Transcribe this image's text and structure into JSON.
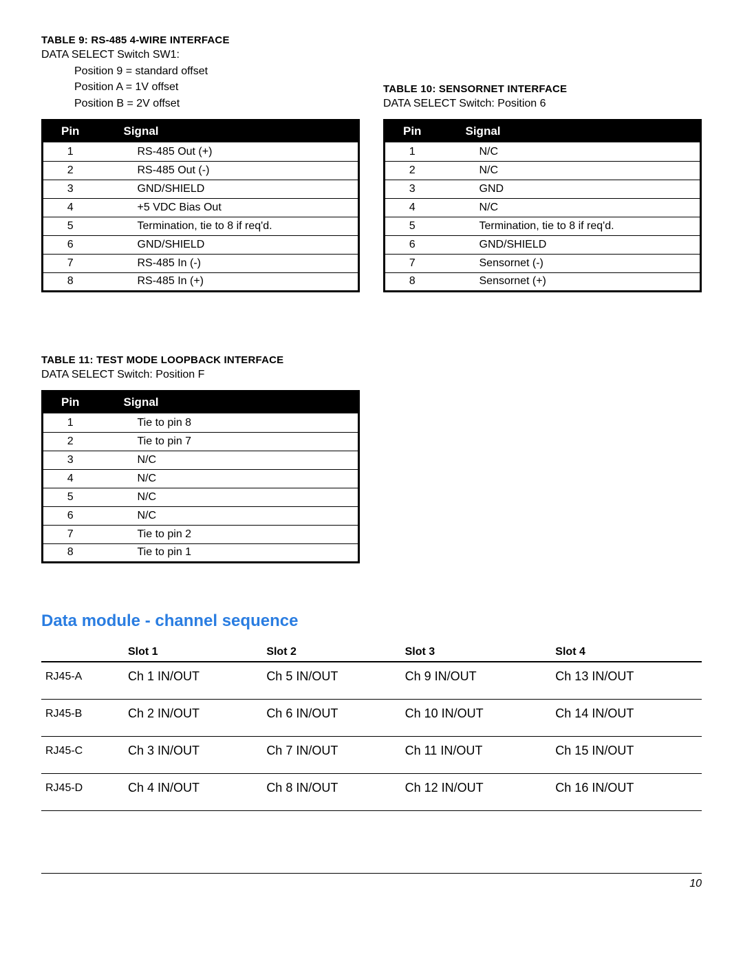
{
  "table9": {
    "title": "TABLE 9: RS-485 4-WIRE INTERFACE",
    "sub1": "DATA SELECT Switch SW1:",
    "positions": [
      "Position 9 = standard offset",
      "Position A = 1V offset",
      "Position B = 2V offset"
    ],
    "header_pin": "Pin",
    "header_signal": "Signal",
    "rows": [
      {
        "pin": "1",
        "signal": "RS-485 Out (+)"
      },
      {
        "pin": "2",
        "signal": "RS-485 Out (-)"
      },
      {
        "pin": "3",
        "signal": "GND/SHIELD"
      },
      {
        "pin": "4",
        "signal": "+5 VDC Bias Out"
      },
      {
        "pin": "5",
        "signal": "Termination, tie to 8 if req'd."
      },
      {
        "pin": "6",
        "signal": "GND/SHIELD"
      },
      {
        "pin": "7",
        "signal": "RS-485 In (-)"
      },
      {
        "pin": "8",
        "signal": "RS-485 In (+)"
      }
    ]
  },
  "table10": {
    "title": "TABLE 10: SENSORNET INTERFACE",
    "sub1": "DATA SELECT Switch: Position 6",
    "header_pin": "Pin",
    "header_signal": "Signal",
    "rows": [
      {
        "pin": "1",
        "signal": "N/C"
      },
      {
        "pin": "2",
        "signal": "N/C"
      },
      {
        "pin": "3",
        "signal": "GND"
      },
      {
        "pin": "4",
        "signal": "N/C"
      },
      {
        "pin": "5",
        "signal": "Termination, tie to 8 if req'd."
      },
      {
        "pin": "6",
        "signal": "GND/SHIELD"
      },
      {
        "pin": "7",
        "signal": "Sensornet (-)"
      },
      {
        "pin": "8",
        "signal": "Sensornet (+)"
      }
    ]
  },
  "table11": {
    "title": "TABLE 11: TEST MODE LOOPBACK INTERFACE",
    "sub1": "DATA SELECT Switch: Position F",
    "header_pin": "Pin",
    "header_signal": "Signal",
    "rows": [
      {
        "pin": "1",
        "signal": "Tie to pin 8"
      },
      {
        "pin": "2",
        "signal": "Tie to pin 7"
      },
      {
        "pin": "3",
        "signal": "N/C"
      },
      {
        "pin": "4",
        "signal": "N/C"
      },
      {
        "pin": "5",
        "signal": "N/C"
      },
      {
        "pin": "6",
        "signal": "N/C"
      },
      {
        "pin": "7",
        "signal": "Tie to pin 2"
      },
      {
        "pin": "8",
        "signal": "Tie to pin 1"
      }
    ]
  },
  "sequence": {
    "title": "Data module - channel sequence",
    "slot_headers": [
      "Slot 1",
      "Slot 2",
      "Slot 3",
      "Slot 4"
    ],
    "rows": [
      {
        "label": "RJ45-A",
        "cells": [
          "Ch 1 IN/OUT",
          "Ch 5 IN/OUT",
          "Ch 9 IN/OUT",
          "Ch 13 IN/OUT"
        ]
      },
      {
        "label": "RJ45-B",
        "cells": [
          "Ch 2 IN/OUT",
          "Ch 6 IN/OUT",
          "Ch 10 IN/OUT",
          "Ch 14 IN/OUT"
        ]
      },
      {
        "label": "RJ45-C",
        "cells": [
          "Ch 3 IN/OUT",
          "Ch 7 IN/OUT",
          "Ch 11 IN/OUT",
          "Ch 15 IN/OUT"
        ]
      },
      {
        "label": "RJ45-D",
        "cells": [
          "Ch 4 IN/OUT",
          "Ch 8 IN/OUT",
          "Ch 12 IN/OUT",
          "Ch 16 IN/OUT"
        ]
      }
    ]
  },
  "page_number": "10"
}
